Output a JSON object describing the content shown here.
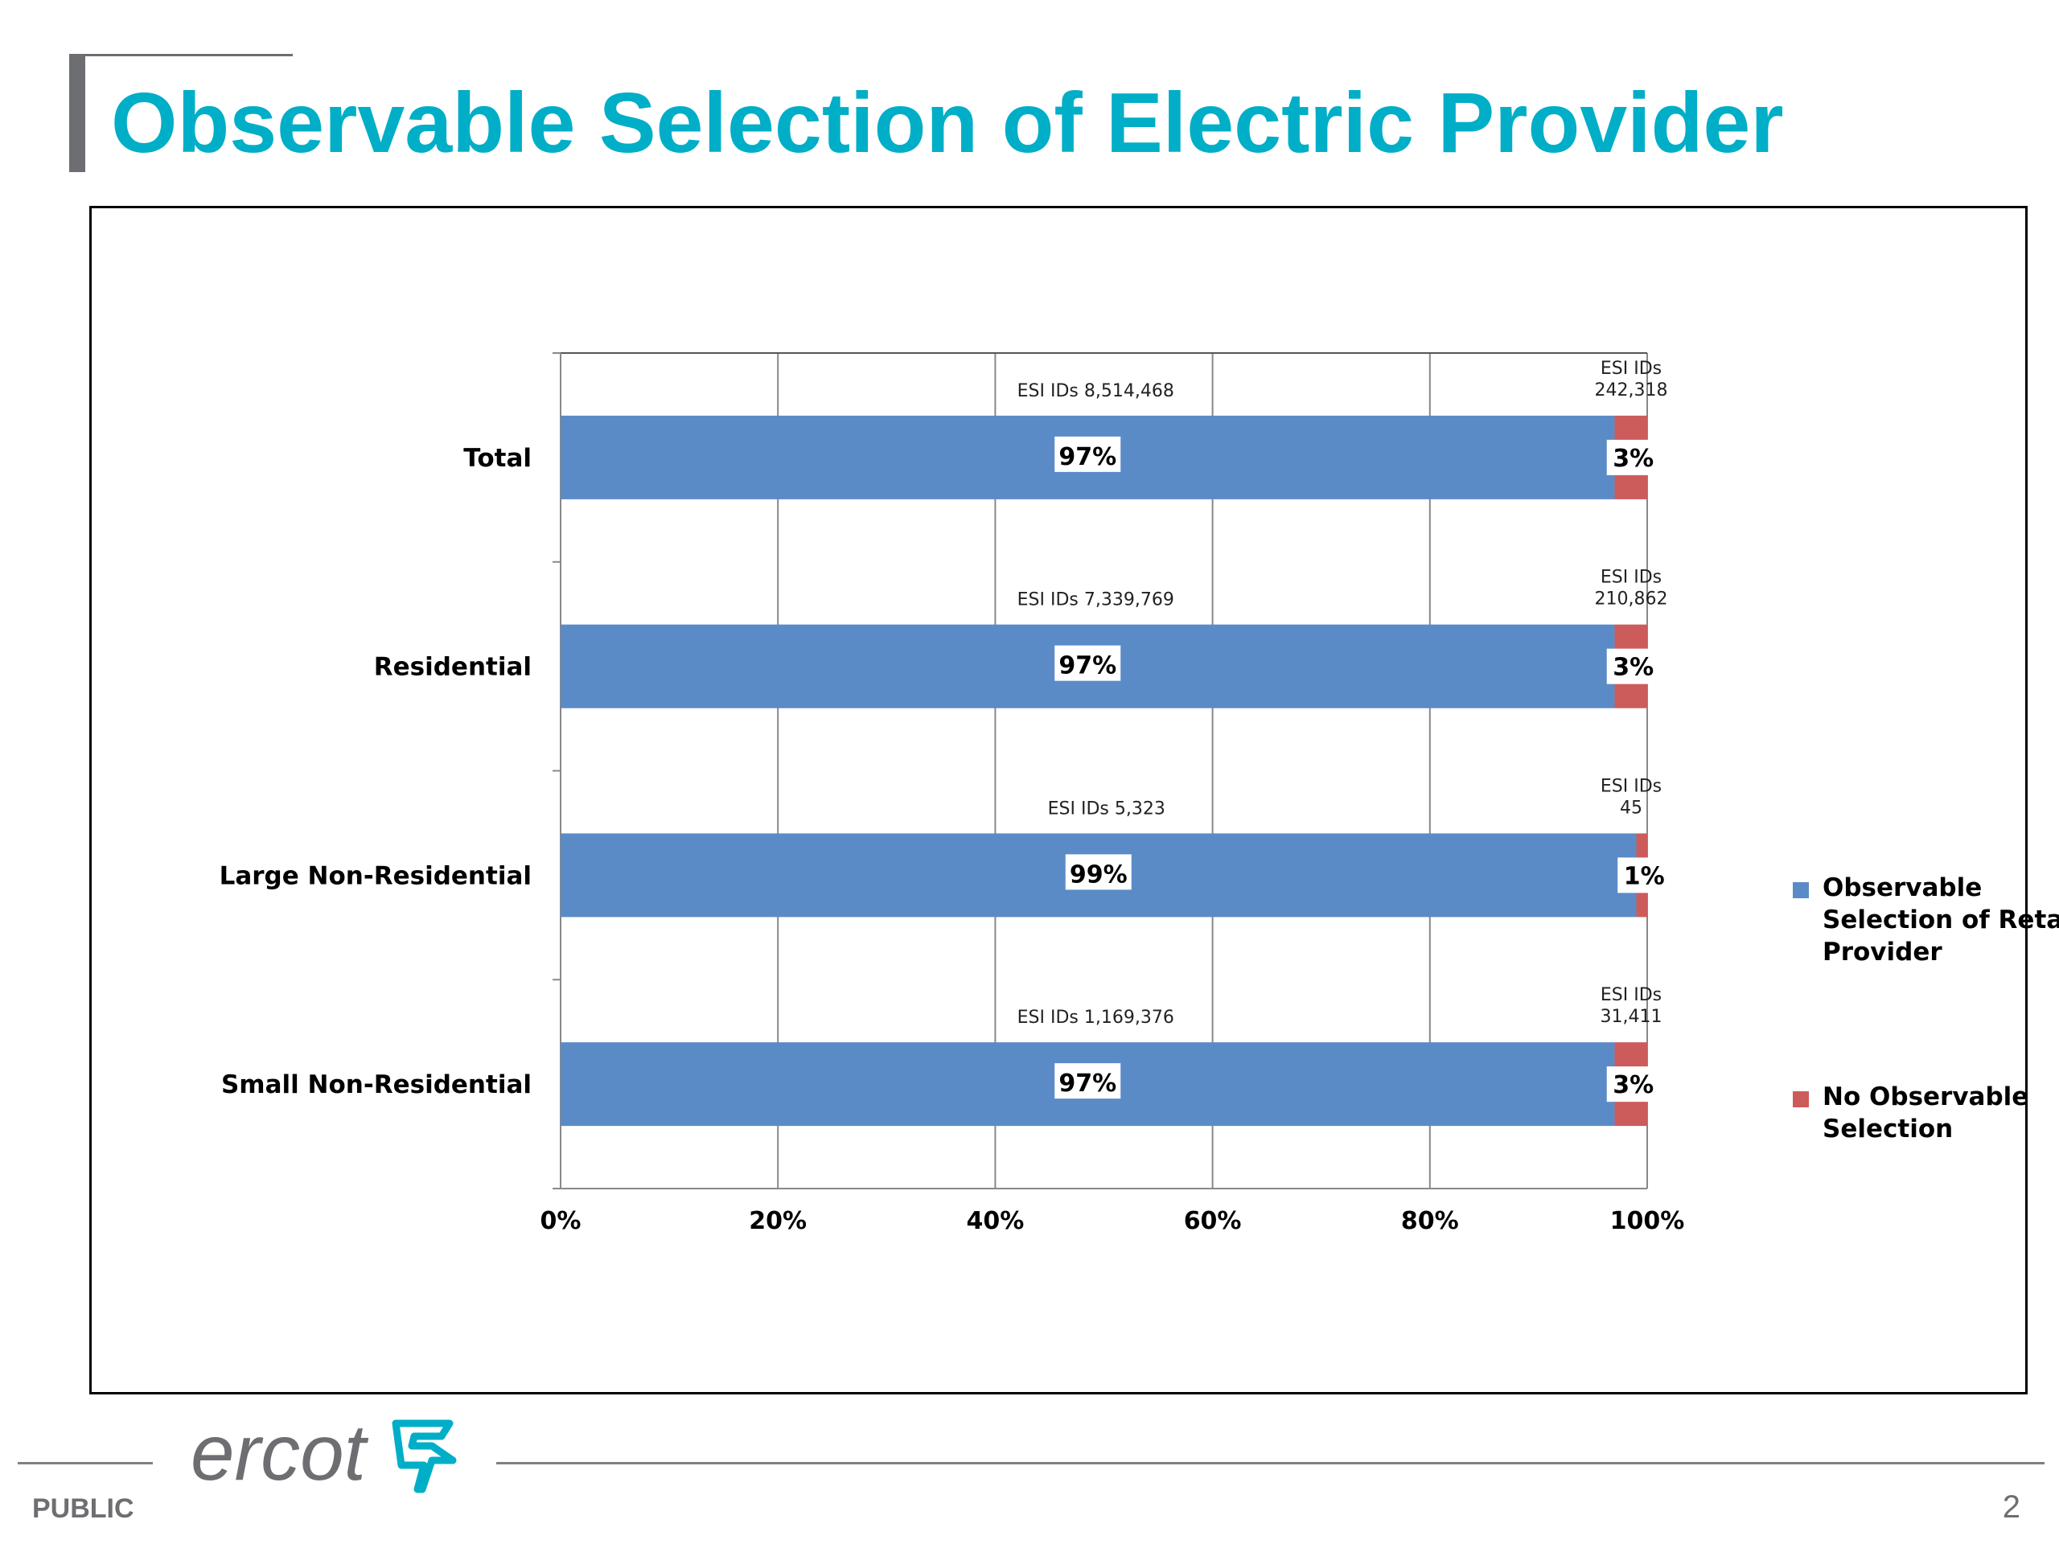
{
  "page": {
    "title": "Observable Selection of Electric Provider",
    "classification": "PUBLIC",
    "page_number": "2",
    "logo_text": "ercot"
  },
  "colors": {
    "title": "#00aec7",
    "observable": "#5b8bc7",
    "no_observable": "#cc5b5b"
  },
  "chart_data": {
    "type": "bar",
    "orientation": "horizontal",
    "stacked": "100%",
    "categories": [
      "Total",
      "Residential",
      "Large Non-Residential",
      "Small Non-Residential"
    ],
    "series": [
      {
        "name": "Observable Selection of Retail Provider",
        "values": [
          97,
          97,
          99,
          97
        ],
        "data_labels": [
          "97%",
          "97%",
          "99%",
          "97%"
        ],
        "annotations": [
          [
            "ESI IDs 8,514,468"
          ],
          [
            "ESI IDs 7,339,769"
          ],
          [
            "ESI IDs 5,323"
          ],
          [
            "ESI IDs 1,169,376"
          ]
        ]
      },
      {
        "name": "No Observable Selection",
        "values": [
          3,
          3,
          1,
          3
        ],
        "data_labels": [
          "3%",
          "3%",
          "1%",
          "3%"
        ],
        "annotations": [
          [
            "ESI IDs",
            "242,318"
          ],
          [
            "ESI IDs",
            "210,862"
          ],
          [
            "ESI IDs",
            "45"
          ],
          [
            "ESI IDs",
            "31,411"
          ]
        ]
      }
    ],
    "xlim": [
      0,
      100
    ],
    "xticks": [
      "0%",
      "20%",
      "40%",
      "60%",
      "80%",
      "100%"
    ],
    "grid": true,
    "legend_position": "right"
  }
}
